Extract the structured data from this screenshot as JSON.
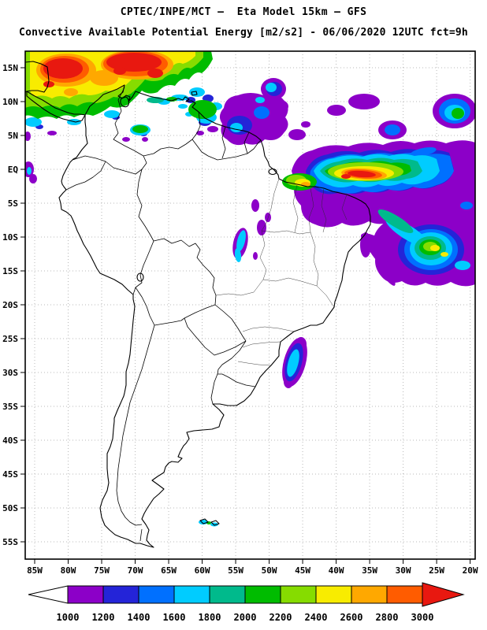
{
  "header": {
    "line1": "CPTEC/INPE/MCT –  Eta Model 15km – GFS",
    "line2": "Convective Available Potential Energy [m2/s2] - 06/06/2020 12UTC fct=9h"
  },
  "map": {
    "lat_labels": [
      "15N",
      "10N",
      "5N",
      "EQ",
      "5S",
      "10S",
      "15S",
      "20S",
      "25S",
      "30S",
      "35S",
      "40S",
      "45S",
      "50S",
      "55S"
    ],
    "lon_labels": [
      "85W",
      "80W",
      "75W",
      "70W",
      "65W",
      "60W",
      "55W",
      "50W",
      "45W",
      "40W",
      "35W",
      "30W",
      "25W",
      "20W"
    ],
    "outline_color": "#000000",
    "grid_color": "#b8b8b8"
  },
  "colorbar": {
    "tick_labels": [
      "1000",
      "1200",
      "1400",
      "1600",
      "1800",
      "2000",
      "2200",
      "2400",
      "2600",
      "2800",
      "3000"
    ],
    "segment_colors": [
      "#8c00c8",
      "#2424d8",
      "#0070ff",
      "#00ccff",
      "#00ba8c",
      "#00bc00",
      "#86dc00",
      "#f8ec00",
      "#ffa800",
      "#ff5c00"
    ],
    "below_min_color": "#ffffff",
    "above_max_color": "#e81810"
  }
}
